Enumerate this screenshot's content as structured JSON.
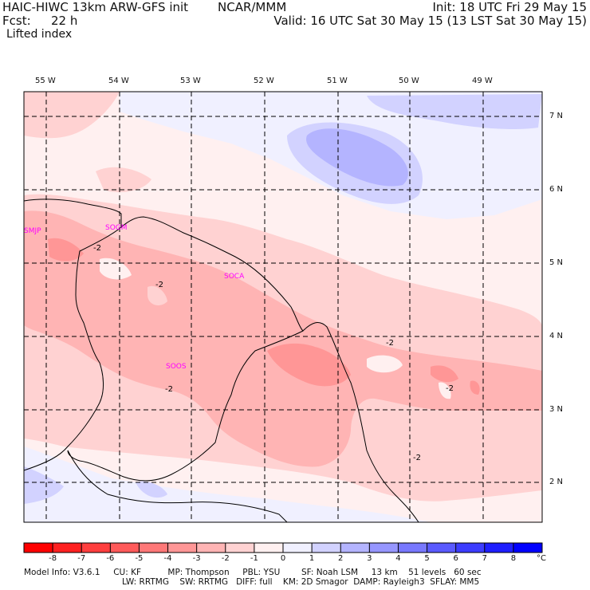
{
  "header": {
    "model_title": "HAIC-HIWC 13km ARW-GFS init",
    "org": "NCAR/MMM",
    "fcst_label": "Fcst:",
    "fcst_value": "22 h",
    "field_name": "Lifted index",
    "init_time": "Init: 18 UTC Fri 29 May 15",
    "valid_time": "Valid: 16 UTC Sat 30 May 15 (13 LST Sat 30 May 15)"
  },
  "map": {
    "lon_labels": [
      "55 W",
      "54 W",
      "53 W",
      "52 W",
      "51 W",
      "50 W",
      "49 W"
    ],
    "lat_labels": [
      "7 N",
      "6 N",
      "5 N",
      "4 N",
      "3 N",
      "2 N"
    ],
    "stations": [
      "SMJP",
      "SOGM",
      "SOCA",
      "SOOS"
    ],
    "contour_labels": [
      "-2",
      "-2",
      "-2",
      "-2",
      "-2",
      "-2"
    ]
  },
  "colorbar": {
    "ticks": [
      "-8",
      "-7",
      "-6",
      "-5",
      "-4",
      "-3",
      "-2",
      "-1",
      "0",
      "1",
      "2",
      "3",
      "4",
      "5",
      "6",
      "7",
      "8"
    ],
    "unit": "°C",
    "colors": [
      "#ff0000",
      "#ff2020",
      "#ff3e3e",
      "#ff5a5a",
      "#ff7878",
      "#ff9696",
      "#ffb4b4",
      "#ffd2d2",
      "#fff0f0",
      "#f0f0ff",
      "#d2d2ff",
      "#b4b4ff",
      "#9696ff",
      "#7878ff",
      "#5a5aff",
      "#3c3cff",
      "#1e1eff",
      "#0000ff"
    ]
  },
  "footer": {
    "line1": "Model Info: V3.6.1     CU: KF          MP: Thompson     PBL: YSU        SF: Noah LSM     13 km    51 levels   60 sec",
    "line2": "LW: RRTMG    SW: RRTMG   DIFF: full    KM: 2D Smagor  DAMP: Rayleigh3  SFLAY: MM5"
  }
}
